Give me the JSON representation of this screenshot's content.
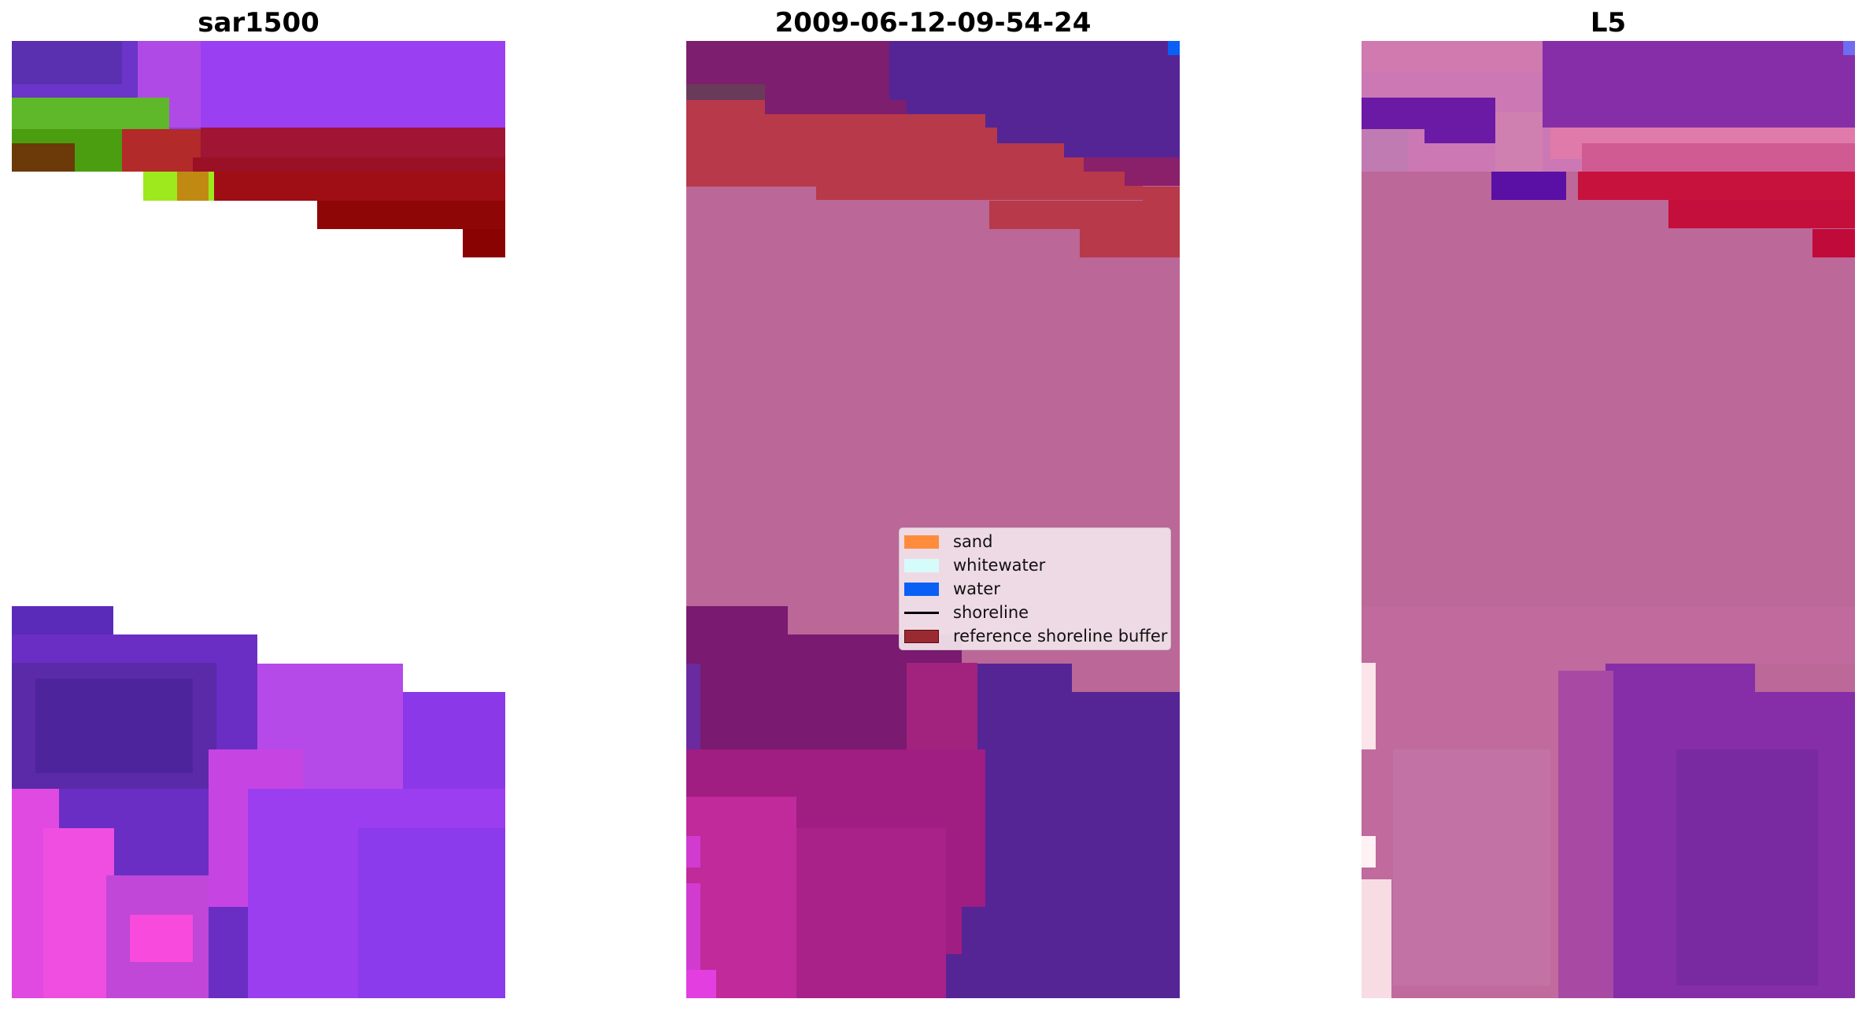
{
  "panels": [
    {
      "title": "sar1500"
    },
    {
      "title": "2009-06-12-09-54-24"
    },
    {
      "title": "L5"
    }
  ],
  "legend": {
    "items": [
      {
        "label": "sand",
        "kind": "patch",
        "color": "#ff8c3c"
      },
      {
        "label": "whitewater",
        "kind": "patch",
        "color": "#d6fbfb"
      },
      {
        "label": "water",
        "kind": "patch",
        "color": "#0a5ff5"
      },
      {
        "label": "shoreline",
        "kind": "line",
        "color": "#000000"
      },
      {
        "label": "reference shoreline buffer",
        "kind": "patch",
        "color": "#9a2a32"
      }
    ]
  }
}
